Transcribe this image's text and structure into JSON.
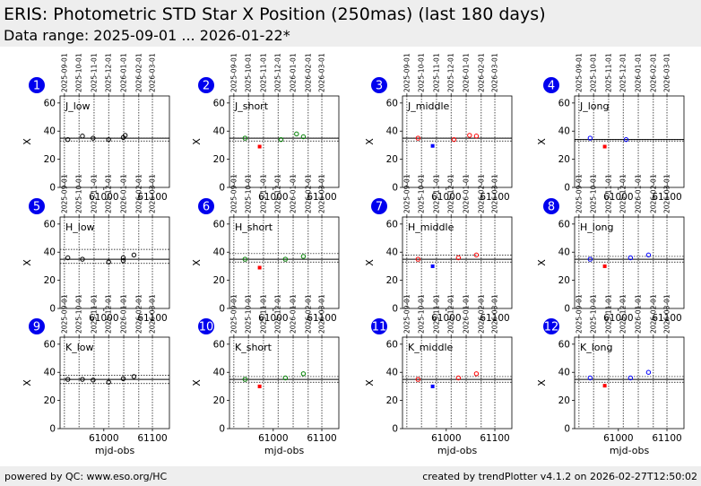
{
  "header": {
    "title": "ERIS: Photometric STD Star X Position (250mas) (last 180 days)",
    "subtitle": "Data range: 2025-09-01 ... 2026-01-22*"
  },
  "footer": {
    "left": "powered by QC: www.eso.org/HC",
    "right": "created by trendPlotter v4.1.2 on 2026-02-27T12:50:02"
  },
  "colors": {
    "black": "#000000",
    "red": "#ff0000",
    "blue": "#0000ff",
    "green": "#008000",
    "badge": "#0000ee",
    "header_bg": "#eeeeee"
  },
  "shared": {
    "xlim": [
      60910,
      61135
    ],
    "ylim": [
      0,
      65
    ],
    "yticks": [
      0,
      20,
      40,
      60
    ],
    "xticks": [
      61000,
      61100
    ],
    "date_ticks": [
      {
        "mjd": 60919,
        "label": "2025-09-01"
      },
      {
        "mjd": 60949,
        "label": "2025-10-01"
      },
      {
        "mjd": 60980,
        "label": "2025-11-01"
      },
      {
        "mjd": 61010,
        "label": "2025-12-01"
      },
      {
        "mjd": 61041,
        "label": "2026-01-01"
      },
      {
        "mjd": 61072,
        "label": "2026-02-01"
      },
      {
        "mjd": 61100,
        "label": "2026-03-01"
      }
    ],
    "ylabel": "X",
    "xlabel": "mjd-obs"
  },
  "chart_data": [
    {
      "type": "scatter",
      "panel": "1",
      "label": "J_low",
      "ref": 35,
      "band": [
        33,
        35
      ],
      "series": [
        {
          "color": "black",
          "marker": "circle",
          "x": [
            60926,
            60956,
            60978,
            61010,
            61040,
            61044
          ],
          "y": [
            34,
            36.5,
            35,
            34,
            35.5,
            37
          ]
        }
      ]
    },
    {
      "type": "scatter",
      "panel": "2",
      "label": "J_short",
      "ref": 35,
      "band": [
        33,
        35
      ],
      "series": [
        {
          "color": "green",
          "marker": "circle",
          "x": [
            60942,
            61016,
            61048,
            61062
          ],
          "y": [
            35,
            34,
            38,
            36
          ]
        },
        {
          "color": "red",
          "marker": "square",
          "x": [
            60972
          ],
          "y": [
            29
          ]
        }
      ]
    },
    {
      "type": "scatter",
      "panel": "3",
      "label": "J_middle",
      "ref": 35,
      "band": [
        33,
        35
      ],
      "series": [
        {
          "color": "red",
          "marker": "circle",
          "x": [
            60942,
            61016,
            61048,
            61062
          ],
          "y": [
            35,
            34,
            37,
            36.5
          ]
        },
        {
          "color": "blue",
          "marker": "square",
          "x": [
            60972
          ],
          "y": [
            29.5
          ]
        }
      ]
    },
    {
      "type": "scatter",
      "panel": "4",
      "label": "J_long",
      "ref": 34,
      "band": [
        33,
        34
      ],
      "series": [
        {
          "color": "blue",
          "marker": "circle",
          "x": [
            60942,
            61016
          ],
          "y": [
            35,
            34
          ]
        },
        {
          "color": "red",
          "marker": "square",
          "x": [
            60972
          ],
          "y": [
            29
          ]
        }
      ]
    },
    {
      "type": "scatter",
      "panel": "5",
      "label": "H_low",
      "ref": 35,
      "band": [
        32,
        42
      ],
      "series": [
        {
          "color": "black",
          "marker": "circle",
          "x": [
            60926,
            60956,
            61010,
            61040,
            61040,
            61062
          ],
          "y": [
            36,
            35,
            33,
            34,
            36,
            38
          ]
        }
      ]
    },
    {
      "type": "scatter",
      "panel": "6",
      "label": "H_short",
      "ref": 35,
      "band": [
        33,
        39
      ],
      "series": [
        {
          "color": "green",
          "marker": "circle",
          "x": [
            60942,
            61025,
            61062
          ],
          "y": [
            35,
            35,
            37
          ]
        },
        {
          "color": "red",
          "marker": "square",
          "x": [
            60972
          ],
          "y": [
            29
          ]
        }
      ]
    },
    {
      "type": "scatter",
      "panel": "7",
      "label": "H_middle",
      "ref": 35,
      "band": [
        33,
        38
      ],
      "series": [
        {
          "color": "red",
          "marker": "circle",
          "x": [
            60942,
            61025,
            61062
          ],
          "y": [
            35,
            36,
            38
          ]
        },
        {
          "color": "blue",
          "marker": "square",
          "x": [
            60972
          ],
          "y": [
            30
          ]
        }
      ]
    },
    {
      "type": "scatter",
      "panel": "8",
      "label": "H_long",
      "ref": 35,
      "band": [
        33,
        37
      ],
      "series": [
        {
          "color": "blue",
          "marker": "circle",
          "x": [
            60942,
            61025,
            61062
          ],
          "y": [
            35,
            36,
            38
          ]
        },
        {
          "color": "red",
          "marker": "square",
          "x": [
            60972
          ],
          "y": [
            30
          ]
        }
      ]
    },
    {
      "type": "scatter",
      "panel": "9",
      "label": "K_low",
      "ref": 35,
      "band": [
        32,
        38
      ],
      "series": [
        {
          "color": "black",
          "marker": "circle",
          "x": [
            60926,
            60956,
            60978,
            61010,
            61040,
            61062
          ],
          "y": [
            35,
            35,
            34.5,
            33,
            35.5,
            37
          ]
        }
      ]
    },
    {
      "type": "scatter",
      "panel": "10",
      "label": "K_short",
      "ref": 35,
      "band": [
        33,
        37
      ],
      "series": [
        {
          "color": "green",
          "marker": "circle",
          "x": [
            60942,
            61025,
            61062
          ],
          "y": [
            35,
            36,
            39
          ]
        },
        {
          "color": "red",
          "marker": "square",
          "x": [
            60972
          ],
          "y": [
            30
          ]
        }
      ]
    },
    {
      "type": "scatter",
      "panel": "11",
      "label": "K_middle",
      "ref": 35,
      "band": [
        33,
        37
      ],
      "series": [
        {
          "color": "red",
          "marker": "circle",
          "x": [
            60942,
            61025,
            61062
          ],
          "y": [
            35,
            36,
            39
          ]
        },
        {
          "color": "blue",
          "marker": "square",
          "x": [
            60972
          ],
          "y": [
            30
          ]
        }
      ]
    },
    {
      "type": "scatter",
      "panel": "12",
      "label": "K_long",
      "ref": 35,
      "band": [
        33,
        37
      ],
      "series": [
        {
          "color": "blue",
          "marker": "circle",
          "x": [
            60942,
            61025,
            61062
          ],
          "y": [
            36,
            36,
            40
          ]
        },
        {
          "color": "red",
          "marker": "square",
          "x": [
            60972
          ],
          "y": [
            30.5
          ]
        }
      ]
    }
  ]
}
